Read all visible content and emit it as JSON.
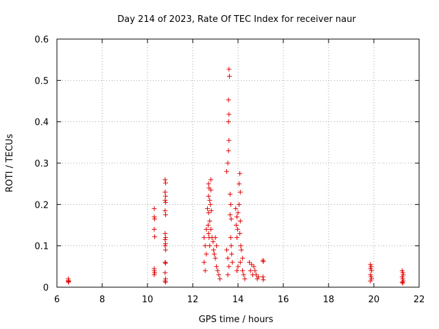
{
  "chart_data": {
    "type": "scatter",
    "title": "Day 214 of 2023, Rate Of TEC Index for receiver naur",
    "xlabel": "GPS time / hours",
    "ylabel": "ROTI / TECUs",
    "xlim": [
      6,
      22
    ],
    "ylim": [
      0,
      0.6
    ],
    "xticks": [
      6,
      8,
      10,
      12,
      14,
      16,
      18,
      20,
      22
    ],
    "yticks": [
      0,
      0.1,
      0.2,
      0.3,
      0.4,
      0.5,
      0.6
    ],
    "xtick_labels": [
      "6",
      "8",
      "10",
      "12",
      "14",
      "16",
      "18",
      "20",
      "22"
    ],
    "ytick_labels": [
      "0",
      "0.1",
      "0.2",
      "0.3",
      "0.4",
      "0.5",
      "0.6"
    ],
    "grid": true,
    "marker": "+",
    "color": "#e00000",
    "series": [
      {
        "points": [
          [
            6.5,
            0.012
          ],
          [
            6.5,
            0.016
          ],
          [
            6.5,
            0.02
          ],
          [
            6.52,
            0.014
          ],
          [
            10.3,
            0.19
          ],
          [
            10.3,
            0.17
          ],
          [
            10.32,
            0.165
          ],
          [
            10.3,
            0.14
          ],
          [
            10.32,
            0.122
          ],
          [
            10.3,
            0.045
          ],
          [
            10.3,
            0.04
          ],
          [
            10.32,
            0.035
          ],
          [
            10.3,
            0.03
          ],
          [
            10.78,
            0.26
          ],
          [
            10.8,
            0.252
          ],
          [
            10.78,
            0.23
          ],
          [
            10.8,
            0.22
          ],
          [
            10.78,
            0.21
          ],
          [
            10.8,
            0.205
          ],
          [
            10.78,
            0.185
          ],
          [
            10.8,
            0.175
          ],
          [
            10.78,
            0.13
          ],
          [
            10.8,
            0.12
          ],
          [
            10.78,
            0.115
          ],
          [
            10.8,
            0.105
          ],
          [
            10.78,
            0.1
          ],
          [
            10.8,
            0.09
          ],
          [
            10.78,
            0.06
          ],
          [
            10.8,
            0.058
          ],
          [
            10.78,
            0.035
          ],
          [
            10.8,
            0.02
          ],
          [
            10.78,
            0.015
          ],
          [
            10.8,
            0.012
          ],
          [
            12.5,
            0.12
          ],
          [
            12.55,
            0.1
          ],
          [
            12.5,
            0.06
          ],
          [
            12.55,
            0.04
          ],
          [
            12.6,
            0.14
          ],
          [
            12.6,
            0.08
          ],
          [
            12.65,
            0.19
          ],
          [
            12.7,
            0.25
          ],
          [
            12.7,
            0.22
          ],
          [
            12.72,
            0.24
          ],
          [
            12.75,
            0.21
          ],
          [
            12.7,
            0.18
          ],
          [
            12.75,
            0.16
          ],
          [
            12.68,
            0.15
          ],
          [
            12.7,
            0.13
          ],
          [
            12.72,
            0.12
          ],
          [
            12.75,
            0.1
          ],
          [
            12.8,
            0.26
          ],
          [
            12.8,
            0.235
          ],
          [
            12.78,
            0.2
          ],
          [
            12.82,
            0.185
          ],
          [
            12.8,
            0.14
          ],
          [
            12.85,
            0.12
          ],
          [
            12.9,
            0.11
          ],
          [
            12.92,
            0.09
          ],
          [
            12.95,
            0.08
          ],
          [
            13.0,
            0.12
          ],
          [
            13.05,
            0.1
          ],
          [
            13.0,
            0.07
          ],
          [
            13.05,
            0.05
          ],
          [
            13.1,
            0.04
          ],
          [
            13.15,
            0.03
          ],
          [
            13.2,
            0.02
          ],
          [
            13.5,
            0.28
          ],
          [
            13.55,
            0.3
          ],
          [
            13.58,
            0.33
          ],
          [
            13.6,
            0.355
          ],
          [
            13.58,
            0.4
          ],
          [
            13.6,
            0.418
          ],
          [
            13.58,
            0.453
          ],
          [
            13.62,
            0.51
          ],
          [
            13.6,
            0.527
          ],
          [
            13.65,
            0.225
          ],
          [
            13.68,
            0.2
          ],
          [
            13.65,
            0.175
          ],
          [
            13.7,
            0.165
          ],
          [
            13.68,
            0.12
          ],
          [
            13.7,
            0.1
          ],
          [
            13.72,
            0.08
          ],
          [
            13.75,
            0.06
          ],
          [
            13.5,
            0.09
          ],
          [
            13.55,
            0.07
          ],
          [
            13.6,
            0.05
          ],
          [
            13.55,
            0.03
          ],
          [
            13.9,
            0.19
          ],
          [
            13.95,
            0.17
          ],
          [
            13.92,
            0.15
          ],
          [
            13.98,
            0.14
          ],
          [
            13.95,
            0.12
          ],
          [
            14.0,
            0.18
          ],
          [
            14.05,
            0.25
          ],
          [
            14.08,
            0.275
          ],
          [
            14.1,
            0.23
          ],
          [
            14.05,
            0.2
          ],
          [
            14.1,
            0.16
          ],
          [
            14.08,
            0.13
          ],
          [
            14.12,
            0.1
          ],
          [
            14.15,
            0.09
          ],
          [
            14.2,
            0.07
          ],
          [
            14.1,
            0.06
          ],
          [
            14.0,
            0.05
          ],
          [
            13.95,
            0.04
          ],
          [
            14.2,
            0.04
          ],
          [
            14.25,
            0.03
          ],
          [
            14.3,
            0.02
          ],
          [
            14.5,
            0.06
          ],
          [
            14.6,
            0.055
          ],
          [
            14.55,
            0.04
          ],
          [
            14.7,
            0.05
          ],
          [
            14.65,
            0.03
          ],
          [
            14.75,
            0.04
          ],
          [
            14.8,
            0.03
          ],
          [
            14.85,
            0.02
          ],
          [
            14.9,
            0.025
          ],
          [
            15.1,
            0.065
          ],
          [
            15.12,
            0.062
          ],
          [
            15.1,
            0.025
          ],
          [
            15.12,
            0.018
          ],
          [
            19.85,
            0.055
          ],
          [
            19.88,
            0.05
          ],
          [
            19.85,
            0.045
          ],
          [
            19.9,
            0.04
          ],
          [
            19.85,
            0.03
          ],
          [
            19.88,
            0.025
          ],
          [
            19.9,
            0.02
          ],
          [
            19.85,
            0.015
          ],
          [
            21.25,
            0.04
          ],
          [
            21.28,
            0.035
          ],
          [
            21.3,
            0.03
          ],
          [
            21.25,
            0.025
          ],
          [
            21.28,
            0.02
          ],
          [
            21.3,
            0.015
          ],
          [
            21.25,
            0.012
          ],
          [
            21.28,
            0.01
          ]
        ]
      }
    ]
  }
}
